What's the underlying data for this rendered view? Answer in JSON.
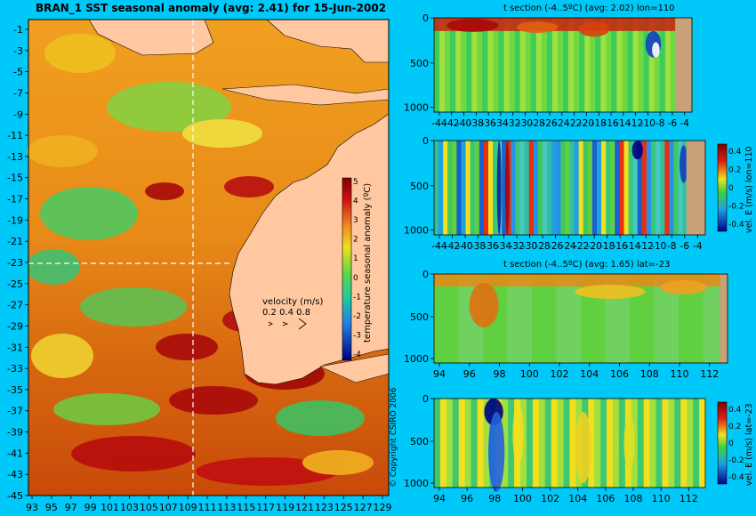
{
  "main_title": "BRAN_1 SST seasonal anomaly (avg: 2.41) for 15-Jun-2002",
  "copyright": "© Copyright CSIRO 2006",
  "colors": {
    "background": "#00c8f8",
    "land": "#ffc8a0",
    "seabed": "#c8a07a",
    "ocean_warm": "#e87a10",
    "ocean_hot": "#a80a0a",
    "ocean_neutral": "#3cc85a",
    "ocean_cool": "#0a4ccc"
  },
  "map": {
    "x_ticks": [
      "93",
      "95",
      "97",
      "99",
      "101",
      "103",
      "105",
      "107",
      "109",
      "111",
      "113",
      "115",
      "117",
      "119",
      "121",
      "123",
      "125",
      "127",
      "129"
    ],
    "y_ticks": [
      "-1",
      "-3",
      "-5",
      "-7",
      "-9",
      "-11",
      "-13",
      "-15",
      "-17",
      "-19",
      "-21",
      "-23",
      "-25",
      "-27",
      "-29",
      "-31",
      "-33",
      "-35",
      "-37",
      "-39",
      "-41",
      "-43",
      "-45"
    ],
    "colorbar": {
      "label": "temperature seasonal anomaly (ºC)",
      "ticks": [
        "5",
        "4",
        "3",
        "2",
        "1",
        "0",
        "-1",
        "-2",
        "-3",
        "-4"
      ]
    },
    "velocity_legend": {
      "title": "velocity (m/s)",
      "values": "0.2 0.4 0.8"
    }
  },
  "panels": {
    "temp_lon": {
      "subtitle": "t section (-4..5ºC) (avg: 2.02) lon=110",
      "x_ticks": [
        "-44",
        "-42",
        "-40",
        "-38",
        "-36",
        "-34",
        "-32",
        "-30",
        "-28",
        "-26",
        "-24",
        "-22",
        "-20",
        "-18",
        "-16",
        "-14",
        "-12",
        "-10",
        "-8",
        "-6",
        "-4"
      ],
      "y_ticks": [
        "0",
        "500",
        "1000"
      ]
    },
    "vel_lon": {
      "x_ticks": [
        "-44",
        "-42",
        "-40",
        "-38",
        "-36",
        "-34",
        "-32",
        "-30",
        "-28",
        "-26",
        "-24",
        "-22",
        "-20",
        "-18",
        "-16",
        "-14",
        "-12",
        "-10",
        "-8",
        "-6",
        "-4"
      ],
      "y_ticks": [
        "0",
        "500",
        "1000"
      ],
      "colorbar_label": "vel. E (m/s) lon=110",
      "colorbar_ticks": [
        "0.4",
        "0.2",
        "0",
        "-0.2",
        "-0.4"
      ]
    },
    "temp_lat": {
      "subtitle": "t section (-4..5ºC) (avg: 1.65) lat=-23",
      "x_ticks": [
        "94",
        "96",
        "98",
        "100",
        "102",
        "104",
        "106",
        "108",
        "110",
        "112"
      ],
      "y_ticks": [
        "0",
        "500",
        "1000"
      ]
    },
    "vel_lat": {
      "x_ticks": [
        "94",
        "96",
        "98",
        "100",
        "102",
        "104",
        "106",
        "108",
        "110",
        "112"
      ],
      "y_ticks": [
        "0",
        "500",
        "1000"
      ],
      "colorbar_label": "vel. E (m/s) lat=-23",
      "colorbar_ticks": [
        "0.4",
        "0.2",
        "0",
        "-0.2",
        "-0.4"
      ]
    }
  },
  "chart_data": [
    {
      "type": "heatmap",
      "title": "BRAN_1 SST seasonal anomaly (avg: 2.41) for 15-Jun-2002",
      "x_range": [
        93,
        130
      ],
      "y_range": [
        -45,
        0
      ],
      "color_range": [
        -4,
        5
      ],
      "colorbar_label": "temperature seasonal anomaly (ºC)",
      "section_lines": {
        "lon": 110,
        "lat": -23
      }
    },
    {
      "type": "heatmap",
      "title": "t section (-4..5ºC) (avg: 2.02) lon=110",
      "x_range": [
        -45,
        -3
      ],
      "y_range": [
        1050,
        0
      ],
      "color_range": [
        -4,
        5
      ]
    },
    {
      "type": "heatmap",
      "x_range": [
        -45,
        -3
      ],
      "y_range": [
        1050,
        0
      ],
      "color_range": [
        -0.4,
        0.4
      ],
      "colorbar_label": "vel. E (m/s) lon=110"
    },
    {
      "type": "heatmap",
      "title": "t section (-4..5ºC) (avg: 1.65) lat=-23",
      "x_range": [
        93,
        114
      ],
      "y_range": [
        1050,
        0
      ],
      "color_range": [
        -4,
        5
      ]
    },
    {
      "type": "heatmap",
      "x_range": [
        93,
        114
      ],
      "y_range": [
        1050,
        0
      ],
      "color_range": [
        -0.4,
        0.4
      ],
      "colorbar_label": "vel. E (m/s) lat=-23"
    }
  ]
}
